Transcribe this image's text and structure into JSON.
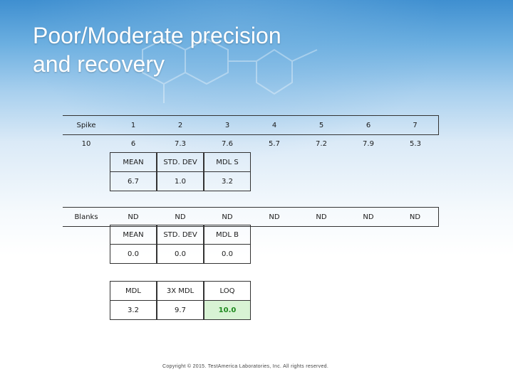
{
  "slide": {
    "title_line1": "Poor/Moderate precision",
    "title_line2": "and recovery",
    "footer": "Copyright © 2015. TestAmerica Laboratories, Inc. All rights reserved."
  },
  "spike_table": {
    "header": [
      "Spike",
      "1",
      "2",
      "3",
      "4",
      "5",
      "6",
      "7"
    ],
    "values": [
      "10",
      "6",
      "7.3",
      "7.6",
      "5.7",
      "7.2",
      "7.9",
      "5.3"
    ]
  },
  "spike_stats": {
    "labels": [
      "MEAN",
      "STD. DEV",
      "MDL S"
    ],
    "values": [
      "6.7",
      "1.0",
      "3.2"
    ]
  },
  "blanks_table": {
    "values": [
      "Blanks",
      "ND",
      "ND",
      "ND",
      "ND",
      "ND",
      "ND",
      "ND"
    ]
  },
  "blank_stats": {
    "labels": [
      "MEAN",
      "STD. DEV",
      "MDL B"
    ],
    "values": [
      "0.0",
      "0.0",
      "0.0"
    ]
  },
  "limits_table": {
    "labels": [
      "MDL",
      "3X MDL",
      "LOQ"
    ],
    "values": [
      "3.2",
      "9.7",
      "10.0"
    ]
  },
  "colors": {
    "title": "#ffffff",
    "loq_highlight_bg": "#d8f3d4",
    "loq_highlight_text": "#1e8a1e"
  }
}
